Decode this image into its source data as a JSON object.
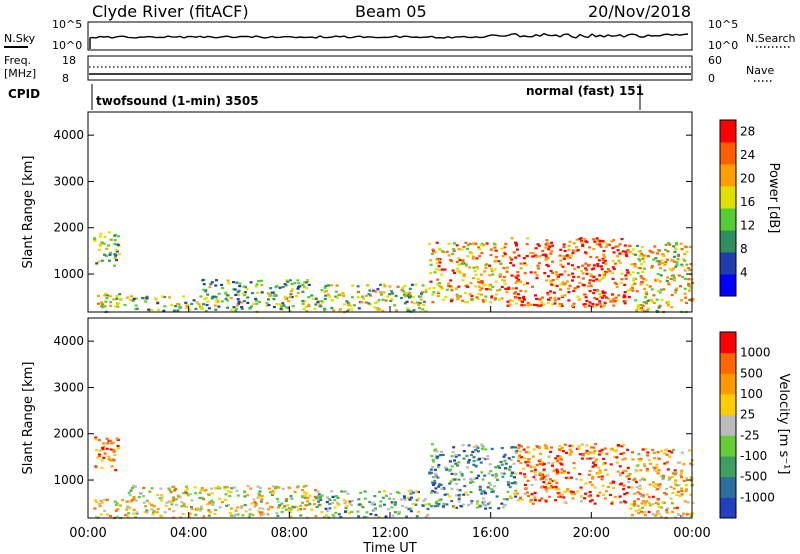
{
  "header": {
    "station": "Clyde River (fitACF)",
    "beam": "Beam 05",
    "date": "20/Nov/2018"
  },
  "top_panels": {
    "nsky_label": "N.Sky",
    "nsky_ticks": [
      "10^5",
      "10^0"
    ],
    "nsearch_label": "N.Search",
    "nsearch_ticks": [
      "10^5",
      "10^0"
    ],
    "freq_label_1": "Freq.",
    "freq_label_2": "[MHz]",
    "freq_ticks": [
      "18",
      "8"
    ],
    "nave_label": "Nave",
    "nave_ticks": [
      "60",
      "0"
    ],
    "cpid_label": "CPID",
    "cpid_mode_1": "twofsound (1-min) 3505",
    "cpid_mode_2": "normal (fast) 151"
  },
  "colors": {
    "power_scale": [
      "#0000ff",
      "#1f3fb0",
      "#2f8f5f",
      "#55cc33",
      "#e0e000",
      "#ff9f00",
      "#ff5f00",
      "#ff0000"
    ],
    "velocity_scale": [
      "#2040c0",
      "#2f6fa0",
      "#3f9f60",
      "#66cc33",
      "#bbbbbb",
      "#ffcc00",
      "#ff9900",
      "#ff6600",
      "#ff0000"
    ]
  },
  "chart_data": [
    {
      "type": "heatmap",
      "title": "",
      "ylabel": "Slant Range [km]",
      "xlabel": "",
      "ylim": [
        180,
        4500
      ],
      "yticks": [
        "1000",
        "2000",
        "3000",
        "4000"
      ],
      "xlim_hours": [
        0,
        24
      ],
      "colorbar": {
        "label": "Power [dB]",
        "ticks": [
          "4",
          "8",
          "12",
          "16",
          "20",
          "24",
          "28"
        ],
        "range": [
          0,
          30
        ]
      },
      "regions": [
        {
          "t0": 0.2,
          "t1": 1.2,
          "r0": 1200,
          "r1": 2000,
          "level": 0.45
        },
        {
          "t0": 0.2,
          "t1": 1.5,
          "r0": 200,
          "r1": 600,
          "level": 0.5
        },
        {
          "t0": 1.5,
          "t1": 4.5,
          "r0": 200,
          "r1": 550,
          "level": 0.45
        },
        {
          "t0": 4.5,
          "t1": 9.0,
          "r0": 200,
          "r1": 900,
          "level": 0.4
        },
        {
          "t0": 9.0,
          "t1": 13.5,
          "r0": 200,
          "r1": 800,
          "level": 0.5
        },
        {
          "t0": 13.5,
          "t1": 16.5,
          "r0": 400,
          "r1": 1700,
          "level": 0.7
        },
        {
          "t0": 16.5,
          "t1": 21.5,
          "r0": 300,
          "r1": 1800,
          "level": 0.85
        },
        {
          "t0": 21.5,
          "t1": 24.0,
          "r0": 200,
          "r1": 1700,
          "level": 0.6
        }
      ]
    },
    {
      "type": "heatmap",
      "title": "",
      "ylabel": "Slant Range [km]",
      "xlabel": "Time UT",
      "ylim": [
        180,
        4500
      ],
      "yticks": [
        "1000",
        "2000",
        "3000",
        "4000"
      ],
      "xticks": [
        "00:00",
        "04:00",
        "08:00",
        "12:00",
        "16:00",
        "20:00",
        "00:00"
      ],
      "xlim_hours": [
        0,
        24
      ],
      "colorbar": {
        "label": "Velocity [m s⁻¹]",
        "ticks": [
          "1000",
          "500",
          "100",
          "25",
          "-25",
          "-100",
          "-500",
          "-1000"
        ],
        "range": [
          -1000,
          1000
        ]
      },
      "regions": [
        {
          "t0": 0.2,
          "t1": 1.2,
          "r0": 1200,
          "r1": 2000,
          "level": 0.85
        },
        {
          "t0": 0.2,
          "t1": 1.5,
          "r0": 200,
          "r1": 600,
          "level": 0.6
        },
        {
          "t0": 1.5,
          "t1": 9.0,
          "r0": 200,
          "r1": 900,
          "level": 0.55
        },
        {
          "t0": 9.0,
          "t1": 13.5,
          "r0": 200,
          "r1": 800,
          "level": 0.35
        },
        {
          "t0": 13.5,
          "t1": 17.0,
          "r0": 400,
          "r1": 1800,
          "level": 0.3
        },
        {
          "t0": 17.0,
          "t1": 21.5,
          "r0": 500,
          "r1": 1800,
          "level": 0.8
        },
        {
          "t0": 21.5,
          "t1": 24.0,
          "r0": 200,
          "r1": 1700,
          "level": 0.65
        }
      ]
    }
  ]
}
